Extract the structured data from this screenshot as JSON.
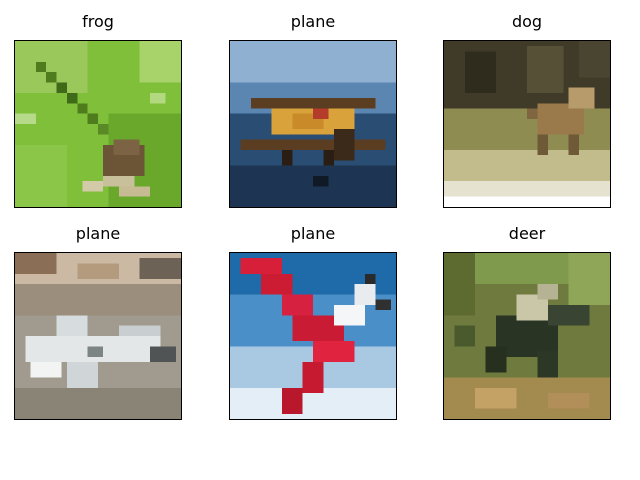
{
  "figure": {
    "panels": [
      {
        "title": "frog"
      },
      {
        "title": "plane"
      },
      {
        "title": "dog"
      },
      {
        "title": "plane"
      },
      {
        "title": "plane"
      },
      {
        "title": "deer"
      }
    ]
  }
}
